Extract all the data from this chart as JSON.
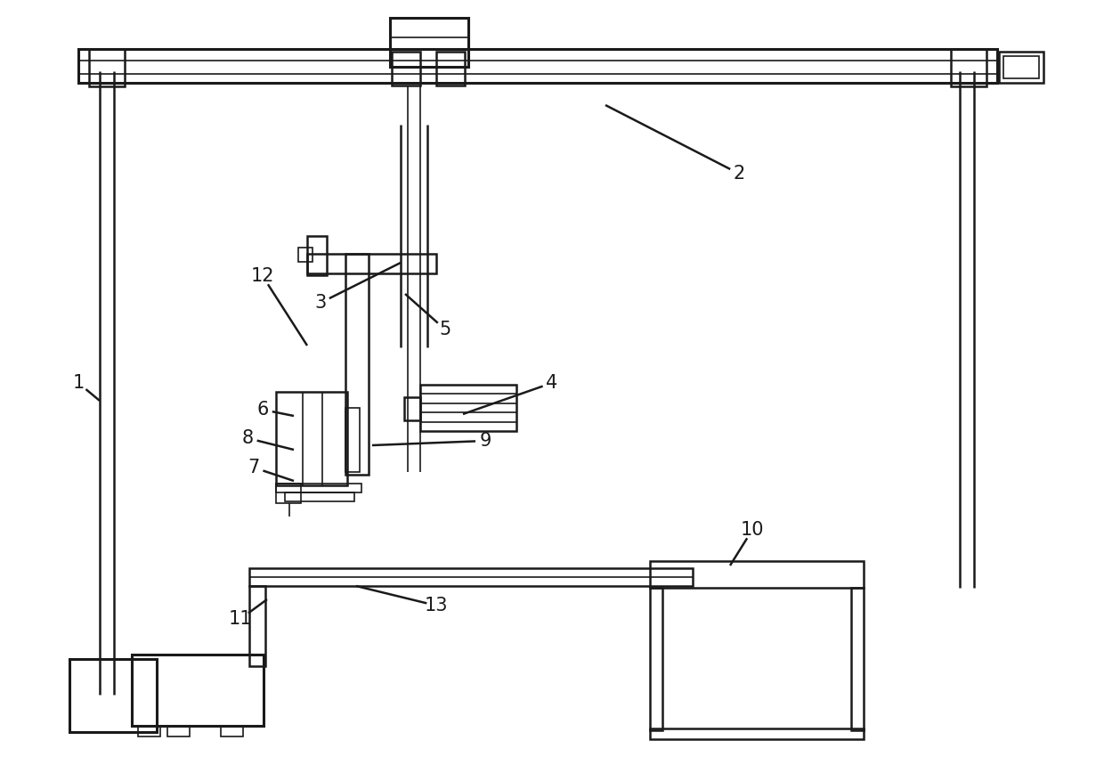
{
  "bg_color": "#ffffff",
  "line_color": "#1a1a1a",
  "lw_thin": 1.2,
  "lw_med": 1.8,
  "lw_thick": 2.2,
  "annotations": [
    [
      "1",
      88,
      430,
      112,
      450
    ],
    [
      "2",
      830,
      195,
      680,
      118
    ],
    [
      "3",
      360,
      340,
      450,
      295
    ],
    [
      "4",
      620,
      430,
      520,
      465
    ],
    [
      "5",
      500,
      370,
      455,
      330
    ],
    [
      "12",
      295,
      310,
      345,
      388
    ],
    [
      "6",
      295,
      460,
      330,
      467
    ],
    [
      "8",
      278,
      492,
      330,
      505
    ],
    [
      "7",
      285,
      525,
      330,
      540
    ],
    [
      "9",
      545,
      495,
      418,
      500
    ],
    [
      "10",
      845,
      595,
      820,
      635
    ],
    [
      "11",
      270,
      695,
      300,
      673
    ],
    [
      "13",
      490,
      680,
      400,
      658
    ]
  ]
}
